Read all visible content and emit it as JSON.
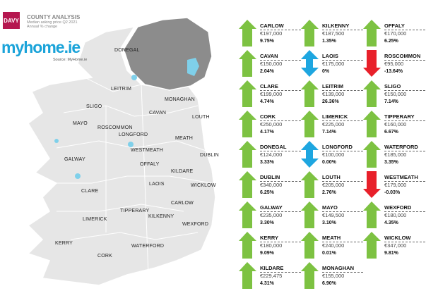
{
  "header": {
    "brand": "DAVY",
    "title": "COUNTY ANALYSIS",
    "subtitle1": "Median asking price Q2 2021",
    "subtitle2": "Annual % change",
    "site": "myhome.ie",
    "source": "Source: MyHome.ie"
  },
  "colors": {
    "up": "#7dc242",
    "down": "#e8202a",
    "flat": "#1ea6e0",
    "ni": "#8c8c8c",
    "roi": "#e6e6e6",
    "brand": "#b5174f"
  },
  "map_labels": [
    "DONEGAL",
    "LEITRIM",
    "MONAGHAN",
    "SLIGO",
    "CAVAN",
    "LOUTH",
    "MAYO",
    "ROSCOMMON",
    "LONGFORD",
    "MEATH",
    "WESTMEATH",
    "DUBLIN",
    "GALWAY",
    "OFFALY",
    "KILDARE",
    "LAOIS",
    "WICKLOW",
    "CLARE",
    "CARLOW",
    "TIPPERARY",
    "KILKENNY",
    "LIMERICK",
    "WEXFORD",
    "KERRY",
    "WATERFORD",
    "CORK"
  ],
  "counties": [
    {
      "name": "CARLOW",
      "price": "€197,000",
      "change": "9.75%",
      "trend": "up"
    },
    {
      "name": "CAVAN",
      "price": "€150,000",
      "change": "2.04%",
      "trend": "up"
    },
    {
      "name": "CLARE",
      "price": "€199,000",
      "change": "4.74%",
      "trend": "up"
    },
    {
      "name": "CORK",
      "price": "€250,000",
      "change": "4.17%",
      "trend": "up"
    },
    {
      "name": "DONEGAL",
      "price": "€124,000",
      "change": "3.33%",
      "trend": "up"
    },
    {
      "name": "DUBLIN",
      "price": "€340,000",
      "change": "6.25%",
      "trend": "up"
    },
    {
      "name": "GALWAY",
      "price": "€235,000",
      "change": "3.30%",
      "trend": "up"
    },
    {
      "name": "KERRY",
      "price": "€180,000",
      "change": "9.09%",
      "trend": "up"
    },
    {
      "name": "KILDARE",
      "price": "€229,475",
      "change": "4.31%",
      "trend": "up"
    },
    {
      "name": "KILKENNY",
      "price": "€187,500",
      "change": "1.35%",
      "trend": "up"
    },
    {
      "name": "LAOIS",
      "price": "€175,000",
      "change": "0%",
      "trend": "flat"
    },
    {
      "name": "LEITRIM",
      "price": "€139,000",
      "change": "26.36%",
      "trend": "up"
    },
    {
      "name": "LIMERICK",
      "price": "€225,000",
      "change": "7.14%",
      "trend": "up"
    },
    {
      "name": "LONGFORD",
      "price": "€100,000",
      "change": "0.00%",
      "trend": "flat"
    },
    {
      "name": "LOUTH",
      "price": "€205,000",
      "change": "2.76%",
      "trend": "up"
    },
    {
      "name": "MAYO",
      "price": "€149,500",
      "change": "3.10%",
      "trend": "up"
    },
    {
      "name": "MEATH",
      "price": "€240,000",
      "change": "0.01%",
      "trend": "up"
    },
    {
      "name": "MONAGHAN",
      "price": "€155,000",
      "change": "6.90%",
      "trend": "up"
    },
    {
      "name": "OFFALY",
      "price": "€170,000",
      "change": "6.25%",
      "trend": "up"
    },
    {
      "name": "ROSCOMMON",
      "price": "€95,000",
      "change": "-13.64%",
      "trend": "down"
    },
    {
      "name": "SLIGO",
      "price": "€150,000",
      "change": "7.14%",
      "trend": "up"
    },
    {
      "name": "TIPPERARY",
      "price": "€160,000",
      "change": "6.67%",
      "trend": "up"
    },
    {
      "name": "WATERFORD",
      "price": "€185,000",
      "change": "3.35%",
      "trend": "up"
    },
    {
      "name": "WESTMEATH",
      "price": "€179,000",
      "change": "-0.03%",
      "trend": "down"
    },
    {
      "name": "WEXFORD",
      "price": "€180,000",
      "change": "4.35%",
      "trend": "up"
    },
    {
      "name": "WICKLOW",
      "price": "€347,000",
      "change": "9.81%",
      "trend": "up"
    }
  ]
}
